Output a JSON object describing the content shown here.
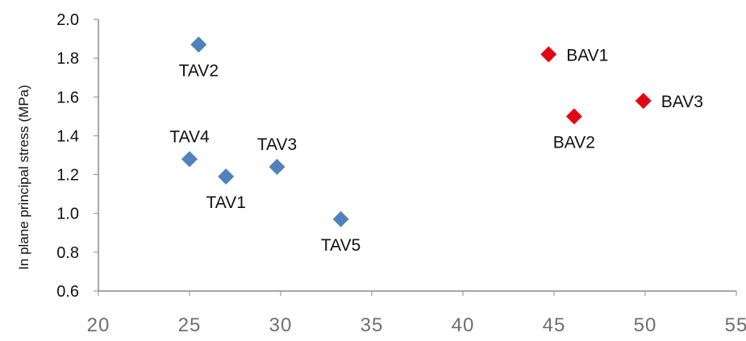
{
  "chart_data": {
    "type": "scatter",
    "title": "",
    "xlabel": "",
    "ylabel": "In plane principal stress (MPa)",
    "xlim": [
      20,
      55
    ],
    "ylim": [
      0.6,
      2.0
    ],
    "xticks": [
      20,
      25,
      30,
      35,
      40,
      45,
      50,
      55
    ],
    "yticks": [
      0.6,
      0.8,
      1.0,
      1.2,
      1.4,
      1.6,
      1.8,
      2.0
    ],
    "x_tick_labels": [
      "20",
      "25",
      "30",
      "35",
      "40",
      "45",
      "50",
      "55"
    ],
    "y_tick_labels": [
      "0.6",
      "0.8",
      "1.0",
      "1.2",
      "1.4",
      "1.6",
      "1.8",
      "2.0"
    ],
    "grid": false,
    "colors": {
      "tav": "#4f81bd",
      "bav": "#e30613",
      "axis": "#8c8c8c"
    },
    "series": [
      {
        "color_key": "tav",
        "points": [
          {
            "label": "TAV2",
            "x": 25.5,
            "y": 1.87,
            "label_anchor": "below"
          },
          {
            "label": "TAV4",
            "x": 25.0,
            "y": 1.28,
            "label_anchor": "above"
          },
          {
            "label": "TAV1",
            "x": 27.0,
            "y": 1.19,
            "label_anchor": "below"
          },
          {
            "label": "TAV3",
            "x": 29.8,
            "y": 1.24,
            "label_anchor": "above"
          },
          {
            "label": "TAV5",
            "x": 33.3,
            "y": 0.97,
            "label_anchor": "below"
          }
        ]
      },
      {
        "color_key": "bav",
        "points": [
          {
            "label": "BAV1",
            "x": 44.7,
            "y": 1.82,
            "label_anchor": "right"
          },
          {
            "label": "BAV2",
            "x": 46.1,
            "y": 1.5,
            "label_anchor": "below"
          },
          {
            "label": "BAV3",
            "x": 49.9,
            "y": 1.58,
            "label_anchor": "right"
          }
        ]
      }
    ]
  }
}
